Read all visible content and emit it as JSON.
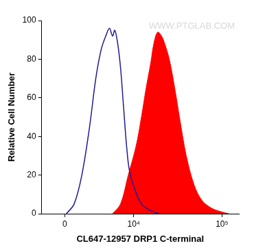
{
  "chart_data": {
    "type": "line",
    "x_label": "CL647-12957 DRP1 C-terminal",
    "y_label": "Relative Cell Number",
    "annotations": [
      "WWW.PTGLAB.COM"
    ],
    "xlim": [
      -2220,
      154700
    ],
    "xticks": [
      0,
      {
        "value": 10000,
        "label": "10⁴"
      },
      {
        "value": 100000,
        "label": "10⁵"
      }
    ],
    "ylim": [
      0,
      100
    ],
    "yticks": [
      0,
      20,
      40,
      60,
      80,
      100
    ],
    "grid": false,
    "series": [
      {
        "type": "line",
        "color": "#1c1c96",
        "x": [
          140,
          844,
          1582,
          2384,
          3094,
          3773,
          4407,
          4974,
          5460,
          5845,
          6381,
          6948,
          7560,
          8225,
          8925,
          10430,
          12330,
          15150,
          19740
        ],
        "values": [
          0,
          5,
          20,
          45,
          70,
          85,
          92,
          96,
          92,
          95,
          88,
          75,
          55,
          35,
          22,
          12,
          5,
          2,
          0
        ]
      },
      {
        "type": "area",
        "color": "#ff0000",
        "x": [
          5460,
          6925,
          8620,
          10680,
          12330,
          13970,
          15790,
          17120,
          18930,
          20970,
          22750,
          25650,
          29540,
          33950,
          39830,
          48690,
          59430,
          75570,
          97830,
          119350
        ],
        "values": [
          0,
          5,
          20,
          35,
          50,
          65,
          78,
          88,
          94,
          92,
          88,
          80,
          65,
          48,
          30,
          15,
          7,
          3,
          1,
          0
        ]
      }
    ]
  }
}
